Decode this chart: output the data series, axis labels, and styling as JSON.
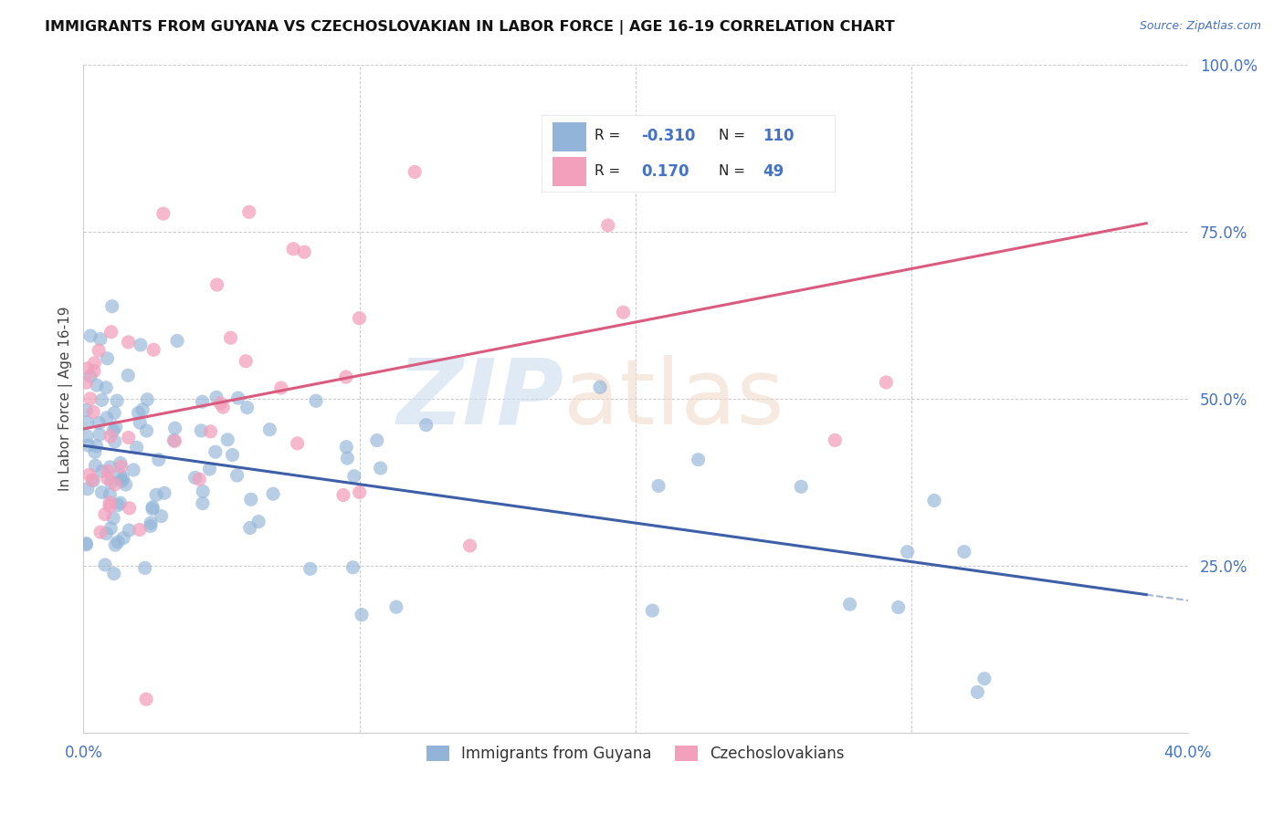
{
  "title": "IMMIGRANTS FROM GUYANA VS CZECHOSLOVAKIAN IN LABOR FORCE | AGE 16-19 CORRELATION CHART",
  "source": "Source: ZipAtlas.com",
  "ylabel": "In Labor Force | Age 16-19",
  "xlim": [
    0.0,
    0.4
  ],
  "ylim": [
    0.0,
    1.0
  ],
  "xtick_positions": [
    0.0,
    0.1,
    0.2,
    0.3,
    0.4
  ],
  "xtick_labels": [
    "0.0%",
    "",
    "",
    "",
    "40.0%"
  ],
  "ytick_positions": [
    0.0,
    0.25,
    0.5,
    0.75,
    1.0
  ],
  "ytick_labels": [
    "",
    "25.0%",
    "50.0%",
    "75.0%",
    "100.0%"
  ],
  "blue_color": "#92b4d8",
  "pink_color": "#f2a0bc",
  "blue_line_color": "#3d5fa8",
  "pink_line_color": "#d95b80",
  "legend_R_blue": "-0.310",
  "legend_N_blue": "110",
  "legend_R_pink": "0.170",
  "legend_N_pink": "49",
  "legend_label_blue": "Immigrants from Guyana",
  "legend_label_pink": "Czechoslovakians",
  "blue_trend_y_intercept": 0.43,
  "blue_trend_slope": -0.58,
  "pink_trend_y_intercept": 0.455,
  "pink_trend_slope": 0.8,
  "background_color": "#ffffff",
  "grid_color": "#cccccc"
}
